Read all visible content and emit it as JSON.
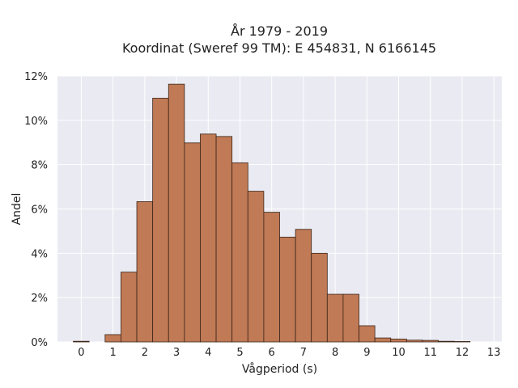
{
  "title": {
    "line1": "År 1979 - 2019",
    "line2": "Koordinat (Sweref 99 TM): E 454831, N 6166145"
  },
  "chart_data": {
    "type": "bar",
    "xlabel": "Vågperiod (s)",
    "ylabel": "Andel",
    "xlim": [
      -0.75,
      13.25
    ],
    "ylim": [
      0,
      12
    ],
    "x_ticks": [
      0,
      1,
      2,
      3,
      4,
      5,
      6,
      7,
      8,
      9,
      10,
      11,
      12,
      13
    ],
    "y_ticks": [
      "0%",
      "2%",
      "4%",
      "6%",
      "8%",
      "10%",
      "12%"
    ],
    "y_tick_values": [
      0,
      2,
      4,
      6,
      8,
      10,
      12
    ],
    "bin_width": 0.5,
    "bin_centers": [
      0,
      0.5,
      1,
      1.5,
      2,
      2.5,
      3,
      3.5,
      4,
      4.5,
      5,
      5.5,
      6,
      6.5,
      7,
      7.5,
      8,
      8.5,
      9,
      9.5,
      10,
      10.5,
      11,
      11.5,
      12,
      12.5,
      13
    ],
    "values": [
      0.03,
      0,
      0.33,
      3.15,
      6.33,
      11.0,
      11.63,
      8.98,
      9.38,
      9.27,
      8.08,
      6.8,
      5.85,
      4.73,
      5.08,
      4.0,
      2.15,
      2.15,
      0.73,
      0.18,
      0.13,
      0.08,
      0.07,
      0.03,
      0.02,
      0,
      0
    ],
    "grid": true,
    "bar_color": "#c07a55",
    "edge_color": "#3a2418",
    "background_color": "#eaeaf2"
  }
}
